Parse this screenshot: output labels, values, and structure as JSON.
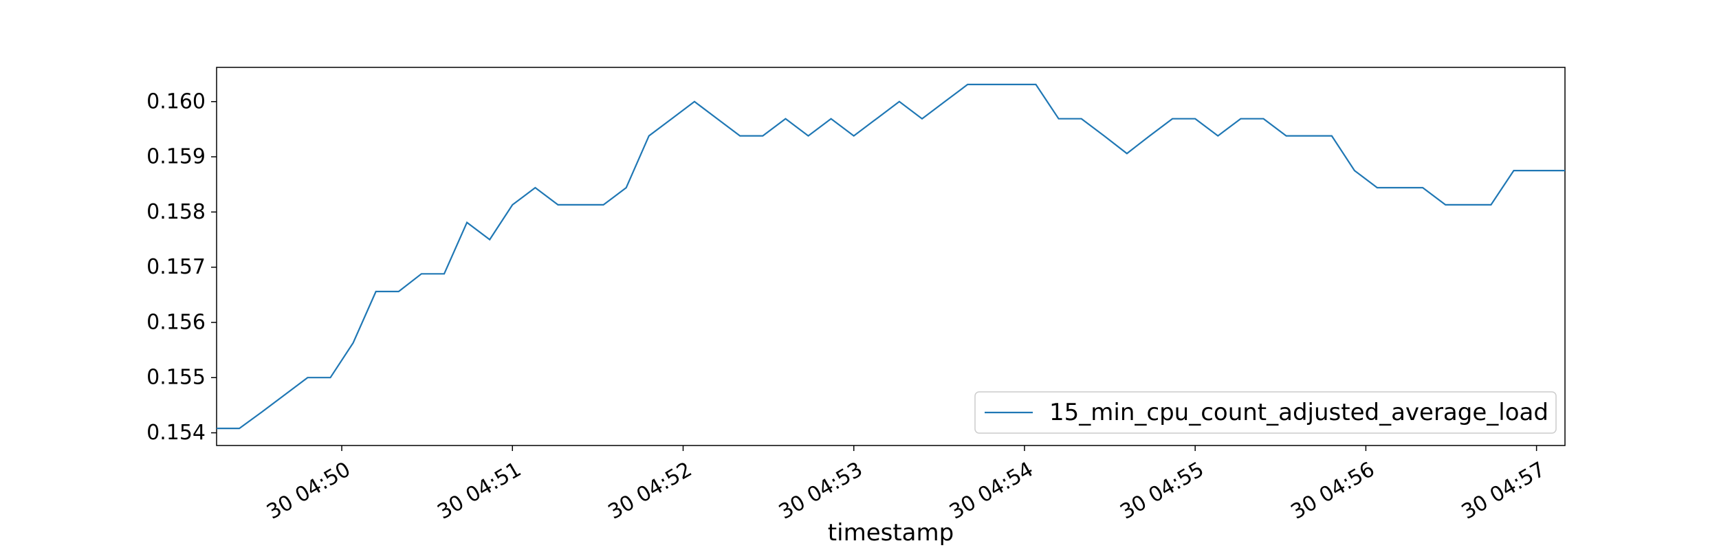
{
  "chart_data": {
    "type": "line",
    "title": "",
    "xlabel": "timestamp",
    "ylabel": "",
    "grid": false,
    "legend_placement": "lower-right",
    "series_color": "#1f77b4",
    "x_range": [
      "30 04:49:16",
      "30 04:57:10"
    ],
    "ylim": [
      0.15377,
      0.16062
    ],
    "x_ticks": [
      {
        "time": "30 04:50:00",
        "label": "30 04:50"
      },
      {
        "time": "30 04:51:00",
        "label": "30 04:51"
      },
      {
        "time": "30 04:52:00",
        "label": "30 04:52"
      },
      {
        "time": "30 04:53:00",
        "label": "30 04:53"
      },
      {
        "time": "30 04:54:00",
        "label": "30 04:54"
      },
      {
        "time": "30 04:55:00",
        "label": "30 04:55"
      },
      {
        "time": "30 04:56:00",
        "label": "30 04:56"
      },
      {
        "time": "30 04:57:00",
        "label": "30 04:57"
      }
    ],
    "y_ticks": [
      {
        "value": 0.154,
        "label": "0.154"
      },
      {
        "value": 0.155,
        "label": "0.155"
      },
      {
        "value": 0.156,
        "label": "0.156"
      },
      {
        "value": 0.157,
        "label": "0.157"
      },
      {
        "value": 0.158,
        "label": "0.158"
      },
      {
        "value": 0.159,
        "label": "0.159"
      },
      {
        "value": 0.16,
        "label": "0.160"
      }
    ],
    "series": [
      {
        "name": "15_min_cpu_count_adjusted_average_load",
        "x": [
          "30 04:49:16",
          "30 04:49:24",
          "30 04:49:32",
          "30 04:49:40",
          "30 04:49:48",
          "30 04:49:56",
          "30 04:50:04",
          "30 04:50:12",
          "30 04:50:20",
          "30 04:50:28",
          "30 04:50:36",
          "30 04:50:44",
          "30 04:50:52",
          "30 04:51:00",
          "30 04:51:08",
          "30 04:51:16",
          "30 04:51:24",
          "30 04:51:32",
          "30 04:51:40",
          "30 04:51:48",
          "30 04:51:56",
          "30 04:52:04",
          "30 04:52:12",
          "30 04:52:20",
          "30 04:52:28",
          "30 04:52:36",
          "30 04:52:44",
          "30 04:52:52",
          "30 04:53:00",
          "30 04:53:08",
          "30 04:53:16",
          "30 04:53:24",
          "30 04:53:32",
          "30 04:53:40",
          "30 04:53:48",
          "30 04:53:56",
          "30 04:54:04",
          "30 04:54:12",
          "30 04:54:20",
          "30 04:54:28",
          "30 04:54:36",
          "30 04:54:44",
          "30 04:54:52",
          "30 04:55:00",
          "30 04:55:08",
          "30 04:55:16",
          "30 04:55:24",
          "30 04:55:32",
          "30 04:55:40",
          "30 04:55:48",
          "30 04:55:56",
          "30 04:56:04",
          "30 04:56:12",
          "30 04:56:20",
          "30 04:56:28",
          "30 04:56:36",
          "30 04:56:44",
          "30 04:56:52",
          "30 04:57:00",
          "30 04:57:08",
          "30 04:57:10"
        ],
        "y": [
          0.15408,
          0.15408,
          0.15438,
          0.15469,
          0.155,
          0.155,
          0.15563,
          0.15656,
          0.15656,
          0.15688,
          0.15688,
          0.15781,
          0.1575,
          0.15813,
          0.15844,
          0.15813,
          0.15813,
          0.15813,
          0.15844,
          0.15938,
          0.15969,
          0.16,
          0.15969,
          0.15938,
          0.15938,
          0.15969,
          0.15938,
          0.15969,
          0.15938,
          0.15969,
          0.16,
          0.15969,
          0.16,
          0.16031,
          0.16031,
          0.16031,
          0.16031,
          0.15969,
          0.15969,
          0.15938,
          0.15906,
          0.15938,
          0.15969,
          0.15969,
          0.15938,
          0.15969,
          0.15969,
          0.15938,
          0.15938,
          0.15938,
          0.15875,
          0.15844,
          0.15844,
          0.15844,
          0.15813,
          0.15813,
          0.15813,
          0.15875,
          0.15875,
          0.15875,
          0.15875
        ]
      }
    ]
  }
}
